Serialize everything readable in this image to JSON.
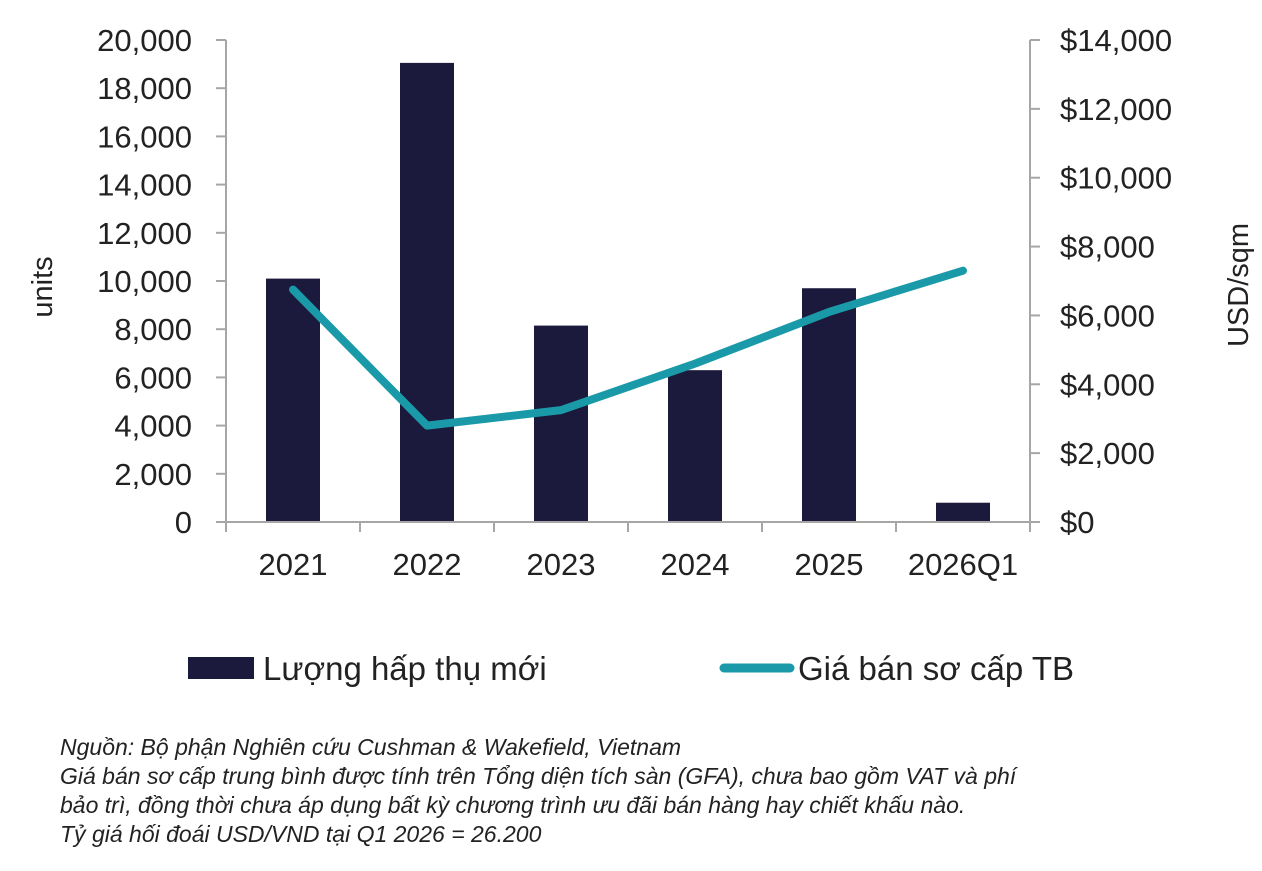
{
  "chart_data": {
    "type": "bar",
    "categories": [
      "2021",
      "2022",
      "2023",
      "2024",
      "2025",
      "2026Q1"
    ],
    "series": [
      {
        "name": "Lượng hấp thụ mới",
        "type": "bar",
        "axis": "left",
        "values": [
          10100,
          19050,
          8150,
          6300,
          9700,
          800
        ],
        "color": "#1c1a3c"
      },
      {
        "name": "Giá bán sơ cấp TB",
        "type": "line",
        "axis": "right",
        "values": [
          6750,
          2800,
          3250,
          4600,
          6100,
          7300
        ],
        "color": "#1a9aa8"
      }
    ],
    "ylabel": "units",
    "ylabel_right": "USD/sqm",
    "ylim": [
      0,
      20000
    ],
    "ylim_right": [
      0,
      14000
    ],
    "yticks": [
      "0",
      "2,000",
      "4,000",
      "6,000",
      "8,000",
      "10,000",
      "12,000",
      "14,000",
      "16,000",
      "18,000",
      "20,000"
    ],
    "yticks_right": [
      "$0",
      "$2,000",
      "$4,000",
      "$6,000",
      "$8,000",
      "$10,000",
      "$12,000",
      "$14,000"
    ],
    "grid": false,
    "legend": "bottom"
  },
  "notes": [
    "Nguồn: Bộ phận Nghiên cứu Cushman & Wakefield, Vietnam",
    "Giá bán sơ cấp trung bình được tính trên Tổng diện tích sàn (GFA), chưa bao gồm VAT và phí",
    "bảo trì, đồng thời chưa áp dụng bất kỳ chương trình ưu đãi bán hàng hay chiết khấu nào.",
    "Tỷ giá hối đoái USD/VND tại Q1 2026 = 26.200"
  ]
}
